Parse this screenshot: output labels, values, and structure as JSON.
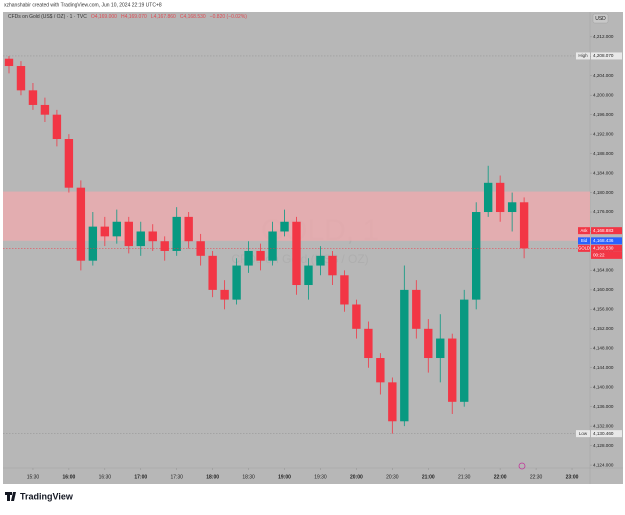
{
  "chart_data": {
    "type": "candlestick",
    "credit": "xzhanshabir created with TradingView.com, Jun 10, 2024 22:19 UTC+8",
    "legend": {
      "symbol": "CFDs on Gold (US$ / OZ) · 1 · TVC",
      "ohlc": [
        "O4,169.000",
        "H4,169.070",
        "L4,167.860",
        "C4,168.530",
        "−0.820 (−0.02%)"
      ]
    },
    "watermark": {
      "title": "GOLD, 1",
      "subtitle": "CFDs on Gold (US$ / OZ)"
    },
    "currency": "USD",
    "logo": "TradingView",
    "up_color": "#089981",
    "down_color": "#f23645",
    "x": [
      "15:10",
      "15:20",
      "15:30",
      "15:40",
      "15:50",
      "16:00",
      "16:10",
      "16:20",
      "16:30",
      "16:40",
      "16:50",
      "17:00",
      "17:10",
      "17:20",
      "17:30",
      "17:40",
      "17:50",
      "18:00",
      "18:10",
      "18:20",
      "18:30",
      "18:40",
      "18:50",
      "19:00",
      "19:10",
      "19:20",
      "19:30",
      "19:40",
      "19:50",
      "20:00",
      "20:10",
      "20:20",
      "20:30",
      "20:40",
      "20:50",
      "21:00",
      "21:10",
      "21:20",
      "21:30",
      "21:40",
      "21:50",
      "22:00",
      "22:10",
      "22:20"
    ],
    "open": [
      4207.5,
      4206,
      4201,
      4198,
      4196,
      4191,
      4181,
      4166,
      4173,
      4171,
      4174,
      4169,
      4172,
      4170,
      4168,
      4175,
      4170,
      4167,
      4160,
      4158,
      4165,
      4168,
      4166,
      4172,
      4174,
      4161,
      4165,
      4167,
      4163,
      4157,
      4152,
      4146,
      4141,
      4133,
      4160,
      4152,
      4146,
      4150,
      4137,
      4158,
      4176,
      4182,
      4176,
      4178
    ],
    "high": [
      4208.07,
      4207,
      4202.5,
      4199.5,
      4197,
      4192,
      4182.5,
      4176,
      4175,
      4176.5,
      4175,
      4174,
      4173.5,
      4171,
      4177,
      4176,
      4171.5,
      4168,
      4162,
      4166.5,
      4170,
      4169.5,
      4174,
      4176.5,
      4175,
      4166.5,
      4169,
      4168,
      4164,
      4158,
      4153.5,
      4147,
      4142,
      4165,
      4162,
      4154,
      4155,
      4151,
      4160,
      4178,
      4185.5,
      4183.5,
      4180,
      4179
    ],
    "low": [
      4204.5,
      4200,
      4197,
      4194.5,
      4189.5,
      4180,
      4164,
      4165,
      4169,
      4169.5,
      4167.5,
      4167,
      4168,
      4166,
      4167,
      4168.5,
      4165,
      4158.5,
      4156,
      4157,
      4163.5,
      4164,
      4165,
      4171,
      4159,
      4158,
      4163,
      4161,
      4155.5,
      4150,
      4144,
      4138.5,
      4130.46,
      4132,
      4150,
      4143,
      4141,
      4134.5,
      4136,
      4156,
      4175,
      4174,
      4172,
      4166.5
    ],
    "close": [
      4206,
      4201,
      4198,
      4196,
      4191,
      4181,
      4166,
      4173,
      4171,
      4174,
      4169,
      4172,
      4170,
      4168,
      4175,
      4170,
      4167,
      4160,
      4158,
      4165,
      4168,
      4166,
      4172,
      4174,
      4161,
      4165,
      4167,
      4163,
      4157,
      4152,
      4146,
      4141,
      4133,
      4160,
      4152,
      4146,
      4150,
      4137,
      4158,
      4176,
      4182,
      4176,
      4178,
      4168.53
    ],
    "xlim": [
      "15:05",
      "23:15"
    ],
    "xticks": [
      "15:30",
      "16:00",
      "16:30",
      "17:00",
      "17:30",
      "18:00",
      "18:30",
      "19:00",
      "19:30",
      "20:00",
      "20:30",
      "21:00",
      "21:30",
      "22:00",
      "22:30",
      "23:00"
    ],
    "ylim": [
      4123.4,
      4217.1
    ],
    "yticks": [
      {
        "value": 4124,
        "label": "4,124.000"
      },
      {
        "value": 4128,
        "label": "4,128.000"
      },
      {
        "value": 4132,
        "label": "4,132.000"
      },
      {
        "value": 4136,
        "label": "4,136.000"
      },
      {
        "value": 4140,
        "label": "4,140.000"
      },
      {
        "value": 4144,
        "label": "4,144.000"
      },
      {
        "value": 4148,
        "label": "4,148.000"
      },
      {
        "value": 4152,
        "label": "4,152.000"
      },
      {
        "value": 4156,
        "label": "4,156.000"
      },
      {
        "value": 4160,
        "label": "4,160.000"
      },
      {
        "value": 4164,
        "label": "4,164.000"
      },
      {
        "value": 4168,
        "label": "4,168.000"
      },
      {
        "value": 4172,
        "label": "4,172.000"
      },
      {
        "value": 4176,
        "label": "4,176.000"
      },
      {
        "value": 4180,
        "label": "4,180.000"
      },
      {
        "value": 4184,
        "label": "4,184.000"
      },
      {
        "value": 4188,
        "label": "4,188.000"
      },
      {
        "value": 4192,
        "label": "4,192.000"
      },
      {
        "value": 4196,
        "label": "4,196.000"
      },
      {
        "value": 4200,
        "label": "4,200.000"
      },
      {
        "value": 4204,
        "label": "4,204.000"
      },
      {
        "value": 4208,
        "label": "4,208.000"
      },
      {
        "value": 4212,
        "label": "4,212.000"
      }
    ],
    "zone": {
      "top": 4180.2,
      "bottom": 4170.1,
      "color": "#f2a9ae"
    },
    "high_marker": {
      "text": "High",
      "value": 4208.07,
      "label": "4,208.070"
    },
    "low_marker": {
      "text": "Low",
      "value": 4130.46,
      "label": "4,130.460"
    },
    "ask": {
      "text": "Ask",
      "value": 4168.883,
      "label": "4,168.883",
      "color": "#f23645"
    },
    "bid": {
      "text": "Bid",
      "value": 4168.436,
      "label": "4,168.436",
      "color": "#2962ff"
    },
    "last": {
      "text": "GOLD",
      "value": 4168.53,
      "label": "4,168.530",
      "countdown": "00:22",
      "color": "#f23645"
    }
  }
}
